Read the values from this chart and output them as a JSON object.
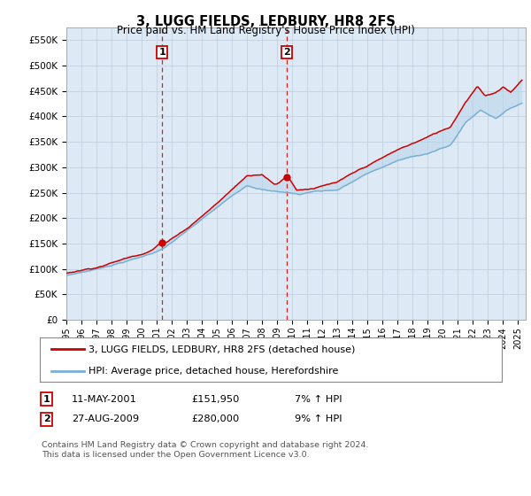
{
  "title": "3, LUGG FIELDS, LEDBURY, HR8 2FS",
  "subtitle": "Price paid vs. HM Land Registry's House Price Index (HPI)",
  "ylabel_ticks": [
    "£0",
    "£50K",
    "£100K",
    "£150K",
    "£200K",
    "£250K",
    "£300K",
    "£350K",
    "£400K",
    "£450K",
    "£500K",
    "£550K"
  ],
  "ytick_values": [
    0,
    50000,
    100000,
    150000,
    200000,
    250000,
    300000,
    350000,
    400000,
    450000,
    500000,
    550000
  ],
  "ylim": [
    0,
    575000
  ],
  "xlim_start": 1995.0,
  "xlim_end": 2025.5,
  "transaction1": {
    "date_num": 2001.36,
    "price": 151950,
    "label": "1"
  },
  "transaction2": {
    "date_num": 2009.65,
    "price": 280000,
    "label": "2"
  },
  "t1_date": "11-MAY-2001",
  "t1_price": "£151,950",
  "t1_hpi": "7% ↑ HPI",
  "t2_date": "27-AUG-2009",
  "t2_price": "£280,000",
  "t2_hpi": "9% ↑ HPI",
  "legend_line1": "3, LUGG FIELDS, LEDBURY, HR8 2FS (detached house)",
  "legend_line2": "HPI: Average price, detached house, Herefordshire",
  "footer": "Contains HM Land Registry data © Crown copyright and database right 2024.\nThis data is licensed under the Open Government Licence v3.0.",
  "line_color_price": "#cc0000",
  "line_color_hpi": "#7aafd4",
  "fill_color": "#b8d4ea",
  "bg_color": "#ddeaf5",
  "plot_bg": "#ffffff",
  "grid_color": "#bbccdd",
  "transaction_line_color": "#cc0000",
  "box_color": "#cc0000"
}
